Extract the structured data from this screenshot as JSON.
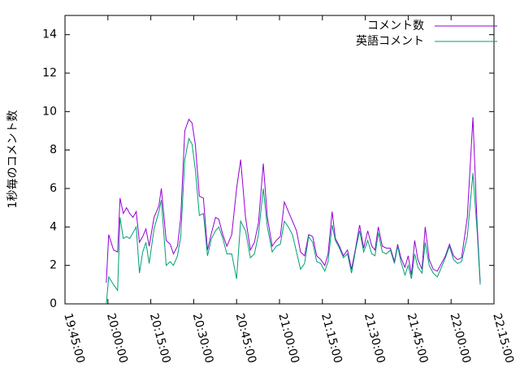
{
  "chart_data": {
    "type": "line",
    "y_label": "1秒毎のコメント数",
    "x": [
      "19:59:26",
      "20:00:17",
      "20:01:59",
      "20:03:24",
      "20:04:15",
      "20:05:23",
      "20:06:31",
      "20:07:38",
      "20:08:46",
      "20:09:54",
      "20:11:02",
      "20:12:10",
      "20:13:18",
      "20:14:26",
      "20:16:08",
      "20:17:50",
      "20:18:41",
      "20:20:23",
      "20:21:48",
      "20:22:55",
      "20:24:20",
      "20:25:28",
      "20:26:53",
      "20:28:18",
      "20:29:26",
      "20:30:34",
      "20:31:59",
      "20:33:24",
      "20:34:49",
      "20:36:14",
      "20:37:38",
      "20:38:46",
      "20:40:11",
      "20:41:36",
      "20:43:18",
      "20:45:00",
      "20:46:25",
      "20:48:07",
      "20:49:49",
      "20:51:14",
      "20:52:38",
      "20:54:20",
      "20:55:45",
      "20:57:27",
      "20:58:52",
      "21:00:17",
      "21:01:42",
      "21:03:07",
      "21:04:32",
      "21:05:57",
      "21:07:21",
      "21:08:46",
      "21:10:11",
      "21:11:36",
      "21:13:01",
      "21:14:26",
      "21:15:51",
      "21:16:59",
      "21:18:24",
      "21:19:32",
      "21:20:57",
      "21:22:21",
      "21:23:46",
      "21:25:11",
      "21:26:36",
      "21:28:01",
      "21:29:26",
      "21:30:51",
      "21:32:16",
      "21:33:24",
      "21:34:32",
      "21:35:57",
      "21:37:21",
      "21:38:46",
      "21:40:11",
      "21:41:19",
      "21:42:27",
      "21:43:52",
      "21:45:00",
      "21:46:08",
      "21:47:16",
      "21:48:24",
      "21:49:49",
      "21:50:57",
      "21:52:21",
      "21:53:46",
      "21:55:11",
      "21:56:36",
      "21:58:01",
      "21:59:26",
      "22:00:51",
      "22:02:16",
      "22:03:41",
      "22:05:40",
      "22:07:38",
      "22:09:03",
      "22:10:11"
    ],
    "series": [
      {
        "name": "コメント数",
        "color": "#9400d3",
        "values": [
          1.1,
          3.6,
          2.8,
          2.7,
          5.5,
          4.7,
          5.0,
          4.7,
          4.5,
          4.8,
          3.2,
          3.5,
          3.9,
          3.0,
          4.5,
          5.1,
          6.0,
          3.3,
          3.1,
          2.6,
          3.0,
          4.5,
          9.0,
          9.6,
          9.4,
          8.3,
          5.6,
          5.5,
          2.8,
          3.7,
          4.5,
          4.4,
          3.6,
          3.0,
          3.6,
          6.0,
          7.5,
          4.5,
          2.8,
          3.2,
          4.2,
          7.3,
          4.5,
          3.0,
          3.3,
          3.5,
          5.3,
          4.8,
          4.3,
          3.8,
          2.7,
          2.5,
          3.6,
          3.5,
          2.5,
          2.3,
          2.0,
          2.6,
          4.8,
          3.4,
          3.0,
          2.5,
          2.8,
          1.8,
          2.9,
          4.1,
          2.9,
          3.8,
          3.0,
          2.8,
          4.0,
          3.0,
          2.9,
          2.9,
          2.2,
          3.1,
          2.4,
          1.9,
          2.5,
          1.5,
          3.3,
          2.3,
          1.8,
          4.0,
          2.3,
          1.8,
          1.7,
          2.1,
          2.5,
          3.1,
          2.5,
          2.3,
          2.4,
          4.5,
          9.7,
          4.3,
          1.1
        ]
      },
      {
        "name": "英語コメント",
        "color": "#009e73",
        "values": [
          0.0,
          1.4,
          1.0,
          0.7,
          4.5,
          3.4,
          3.5,
          3.4,
          3.7,
          4.0,
          1.6,
          2.7,
          3.2,
          2.1,
          3.9,
          4.8,
          5.4,
          2.0,
          2.2,
          2.0,
          2.5,
          3.5,
          7.5,
          8.6,
          8.3,
          7.0,
          4.6,
          4.7,
          2.5,
          3.4,
          3.8,
          4.0,
          3.4,
          2.6,
          2.6,
          1.3,
          4.3,
          3.8,
          2.4,
          2.6,
          3.6,
          6.0,
          4.0,
          2.7,
          3.0,
          3.1,
          4.3,
          4.0,
          3.6,
          2.7,
          1.8,
          2.1,
          3.5,
          3.2,
          2.2,
          2.1,
          1.7,
          2.2,
          4.1,
          3.3,
          2.9,
          2.4,
          2.6,
          1.6,
          2.8,
          3.8,
          2.7,
          3.3,
          2.6,
          2.5,
          3.7,
          2.7,
          2.6,
          2.8,
          2.1,
          3.0,
          2.2,
          1.5,
          2.0,
          1.3,
          2.6,
          1.9,
          1.6,
          3.2,
          2.0,
          1.6,
          1.4,
          1.9,
          2.4,
          3.0,
          2.3,
          2.1,
          2.2,
          3.5,
          6.8,
          3.9,
          1.0
        ]
      }
    ],
    "xlim": [
      "19:45:00",
      "22:15:00"
    ],
    "xticks": [
      "19:45:00",
      "20:00:00",
      "20:15:00",
      "20:30:00",
      "20:45:00",
      "21:00:00",
      "21:15:00",
      "21:30:00",
      "21:45:00",
      "22:00:00",
      "22:15:00"
    ],
    "ylim": [
      0,
      15
    ],
    "yticks": [
      0,
      2,
      4,
      6,
      8,
      10,
      12,
      14
    ],
    "legend": "top-right"
  }
}
